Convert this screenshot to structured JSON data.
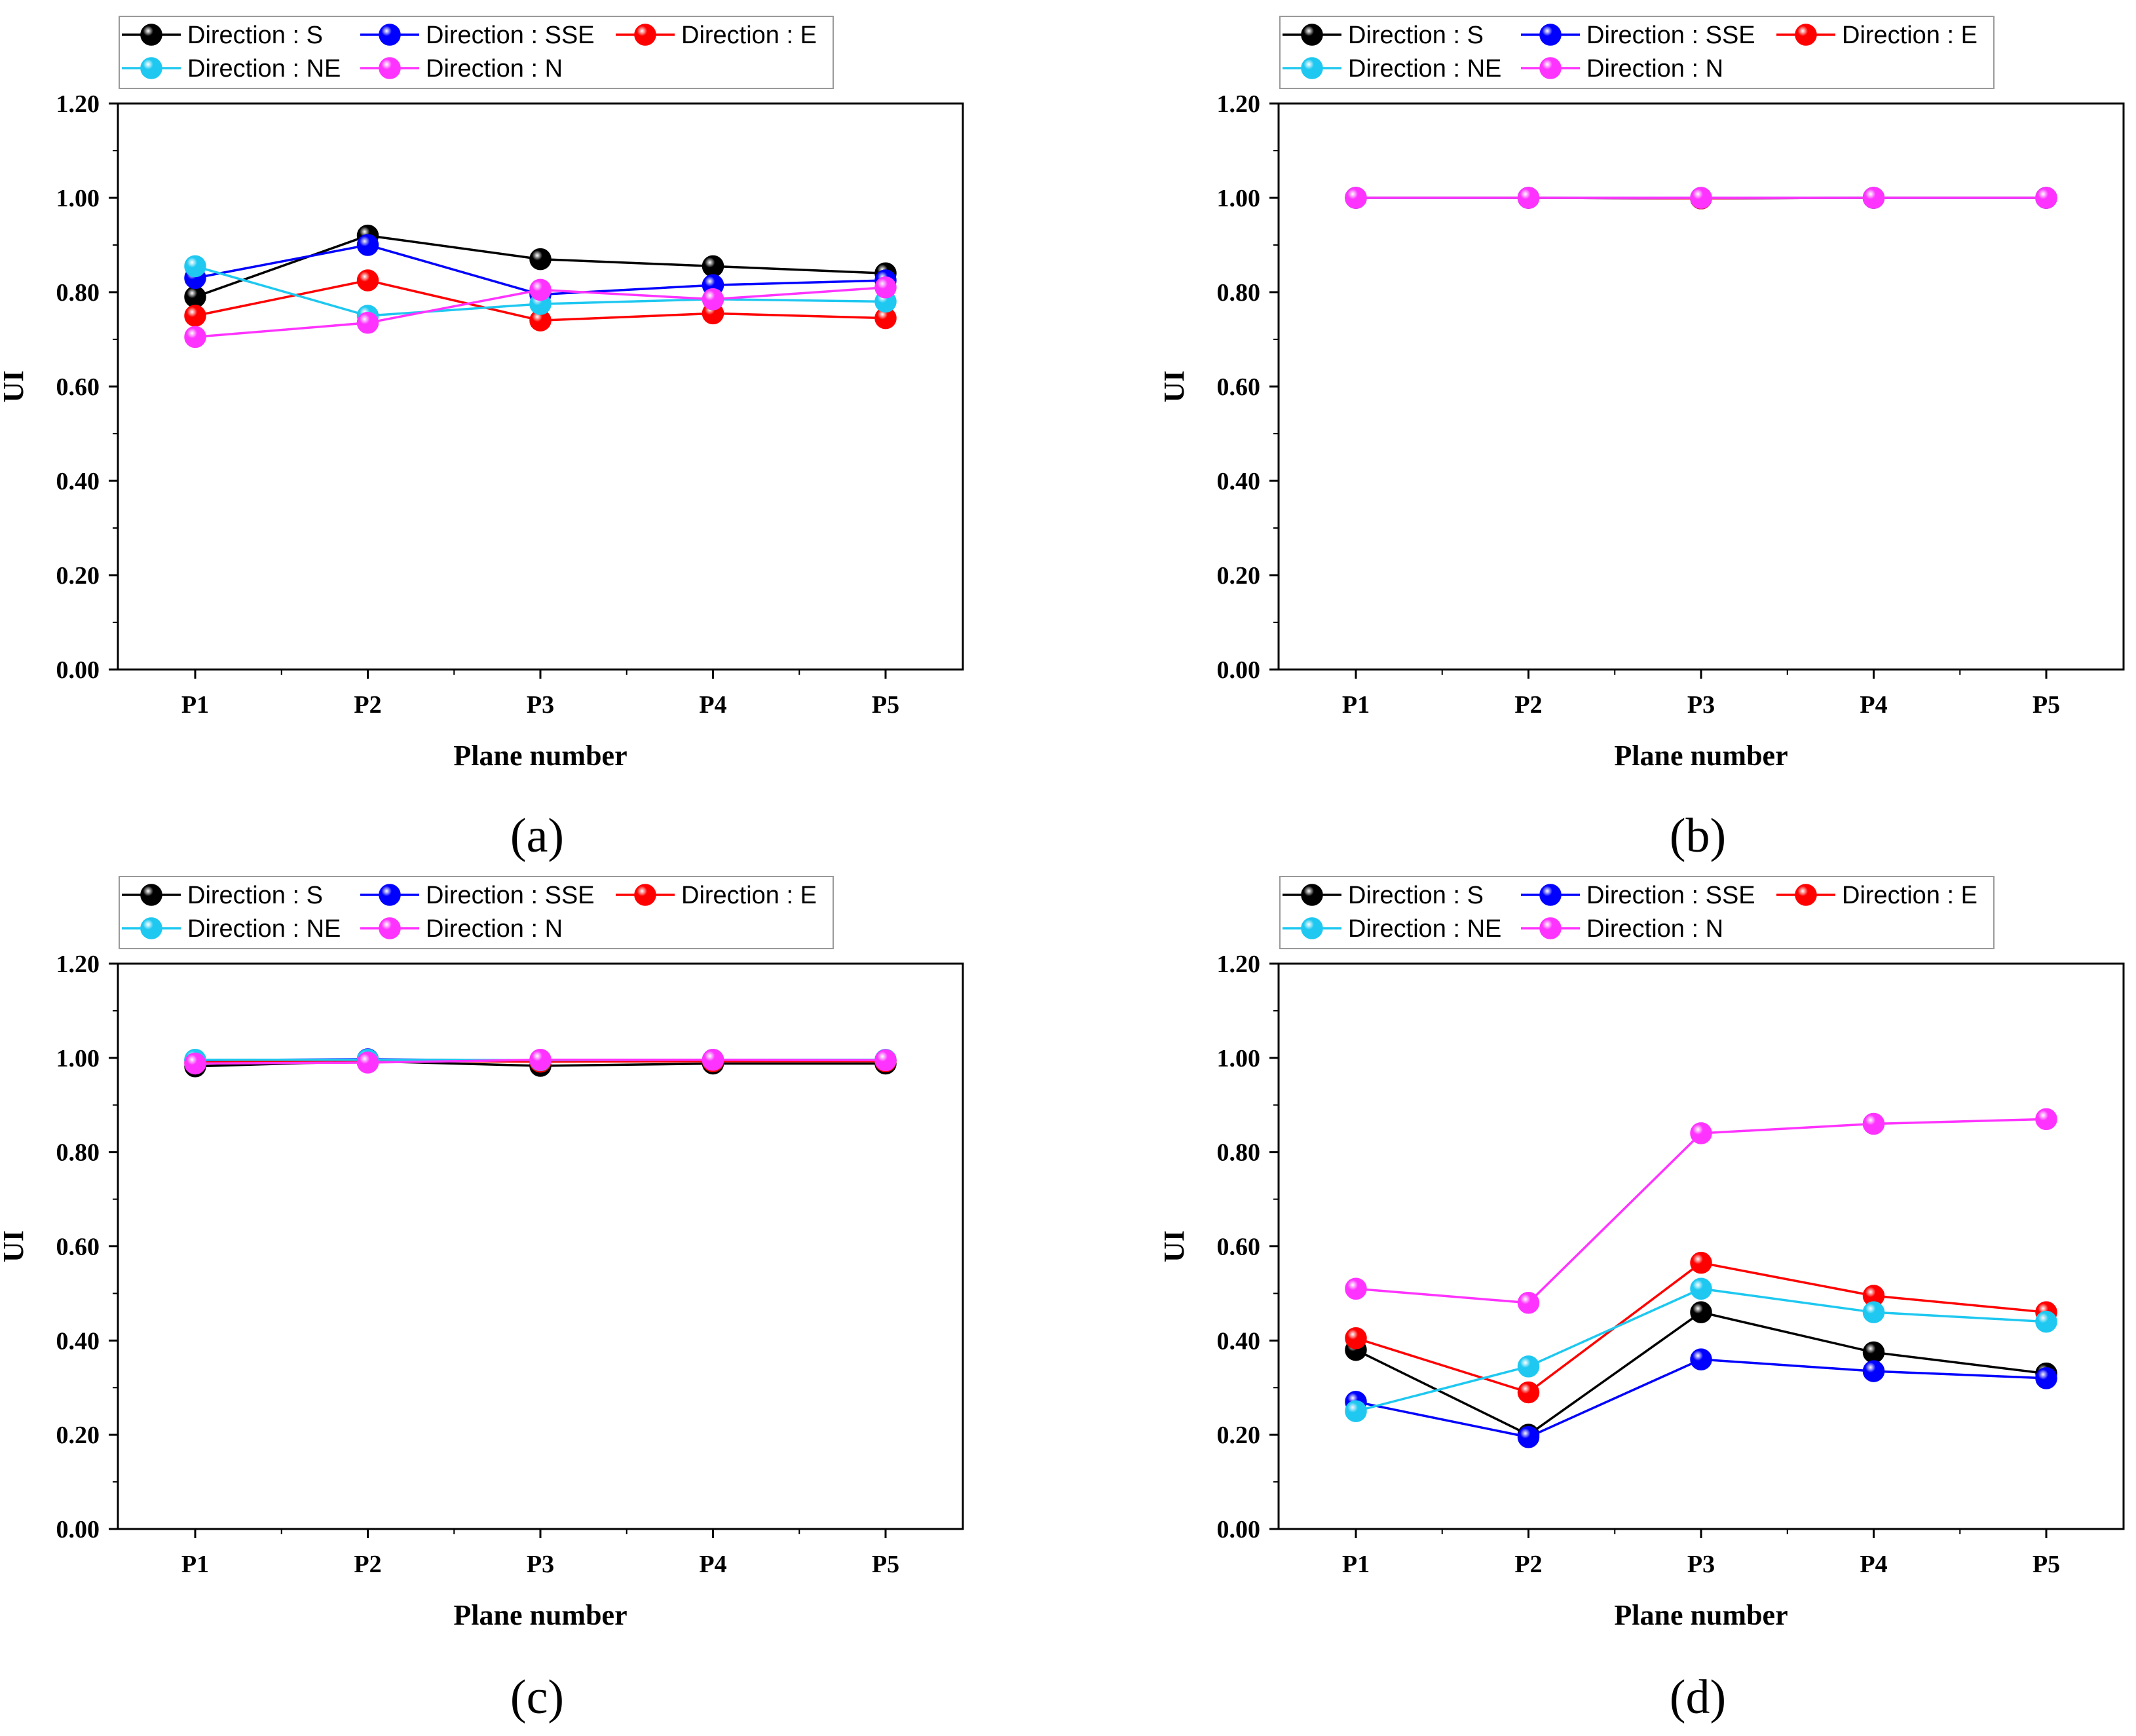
{
  "chart_data": [
    {
      "type": "line",
      "panel_label": "(a)",
      "xlabel": "Plane number",
      "ylabel": "UI",
      "categories": [
        "P1",
        "P2",
        "P3",
        "P4",
        "P5"
      ],
      "ylim": [
        0,
        1.2
      ],
      "yticks": [
        "0.00",
        "0.20",
        "0.40",
        "0.60",
        "0.80",
        "1.00",
        "1.20"
      ],
      "legend_position": "top-left",
      "series": [
        {
          "name": "Direction : S",
          "color": "#000000",
          "values": [
            0.79,
            0.92,
            0.87,
            0.855,
            0.84
          ]
        },
        {
          "name": "Direction : SSE",
          "color": "#0000ff",
          "values": [
            0.83,
            0.9,
            0.795,
            0.815,
            0.825
          ]
        },
        {
          "name": "Direction : E",
          "color": "#ff0000",
          "values": [
            0.75,
            0.825,
            0.74,
            0.755,
            0.745
          ]
        },
        {
          "name": "Direction : NE",
          "color": "#1ec8f0",
          "values": [
            0.855,
            0.75,
            0.775,
            0.785,
            0.78
          ]
        },
        {
          "name": "Direction : N",
          "color": "#ff33ff",
          "values": [
            0.705,
            0.735,
            0.805,
            0.785,
            0.81
          ]
        }
      ]
    },
    {
      "type": "line",
      "panel_label": "(b)",
      "xlabel": "Plane number",
      "ylabel": "UI",
      "categories": [
        "P1",
        "P2",
        "P3",
        "P4",
        "P5"
      ],
      "ylim": [
        0,
        1.2
      ],
      "yticks": [
        "0.00",
        "0.20",
        "0.40",
        "0.60",
        "0.80",
        "1.00",
        "1.20"
      ],
      "legend_position": "top-left",
      "series": [
        {
          "name": "Direction : S",
          "color": "#000000",
          "values": [
            1.0,
            1.0,
            0.999,
            1.0,
            1.0
          ]
        },
        {
          "name": "Direction : SSE",
          "color": "#0000ff",
          "values": [
            1.0,
            1.0,
            0.999,
            1.0,
            1.0
          ]
        },
        {
          "name": "Direction : E",
          "color": "#ff0000",
          "values": [
            1.0,
            1.0,
            0.999,
            1.0,
            1.0
          ]
        },
        {
          "name": "Direction : NE",
          "color": "#1ec8f0",
          "values": [
            1.0,
            1.0,
            1.0,
            1.0,
            1.0
          ]
        },
        {
          "name": "Direction : N",
          "color": "#ff33ff",
          "values": [
            1.0,
            1.0,
            1.0,
            1.0,
            1.0
          ]
        }
      ]
    },
    {
      "type": "line",
      "panel_label": "(c)",
      "xlabel": "Plane number",
      "ylabel": "UI",
      "categories": [
        "P1",
        "P2",
        "P3",
        "P4",
        "P5"
      ],
      "ylim": [
        0,
        1.2
      ],
      "yticks": [
        "0.00",
        "0.20",
        "0.40",
        "0.60",
        "0.80",
        "1.00",
        "1.20"
      ],
      "legend_position": "top-left",
      "series": [
        {
          "name": "Direction : S",
          "color": "#000000",
          "values": [
            0.982,
            0.993,
            0.983,
            0.988,
            0.988
          ]
        },
        {
          "name": "Direction : SSE",
          "color": "#0000ff",
          "values": [
            0.995,
            0.997,
            0.994,
            0.995,
            0.995
          ]
        },
        {
          "name": "Direction : E",
          "color": "#ff0000",
          "values": [
            0.99,
            0.994,
            0.992,
            0.993,
            0.993
          ]
        },
        {
          "name": "Direction : NE",
          "color": "#1ec8f0",
          "values": [
            0.996,
            0.996,
            0.995,
            0.996,
            0.996
          ]
        },
        {
          "name": "Direction : N",
          "color": "#ff33ff",
          "values": [
            0.988,
            0.99,
            0.996,
            0.996,
            0.995
          ]
        }
      ]
    },
    {
      "type": "line",
      "panel_label": "(d)",
      "xlabel": "Plane number",
      "ylabel": "UI",
      "categories": [
        "P1",
        "P2",
        "P3",
        "P4",
        "P5"
      ],
      "ylim": [
        0,
        1.2
      ],
      "yticks": [
        "0.00",
        "0.20",
        "0.40",
        "0.60",
        "0.80",
        "1.00",
        "1.20"
      ],
      "legend_position": "top-left",
      "series": [
        {
          "name": "Direction : S",
          "color": "#000000",
          "values": [
            0.38,
            0.2,
            0.46,
            0.375,
            0.33
          ]
        },
        {
          "name": "Direction : SSE",
          "color": "#0000ff",
          "values": [
            0.27,
            0.195,
            0.36,
            0.335,
            0.32
          ]
        },
        {
          "name": "Direction : E",
          "color": "#ff0000",
          "values": [
            0.405,
            0.29,
            0.565,
            0.495,
            0.46
          ]
        },
        {
          "name": "Direction : NE",
          "color": "#1ec8f0",
          "values": [
            0.25,
            0.345,
            0.51,
            0.46,
            0.44
          ]
        },
        {
          "name": "Direction : N",
          "color": "#ff33ff",
          "values": [
            0.51,
            0.48,
            0.84,
            0.86,
            0.87
          ]
        }
      ]
    }
  ]
}
